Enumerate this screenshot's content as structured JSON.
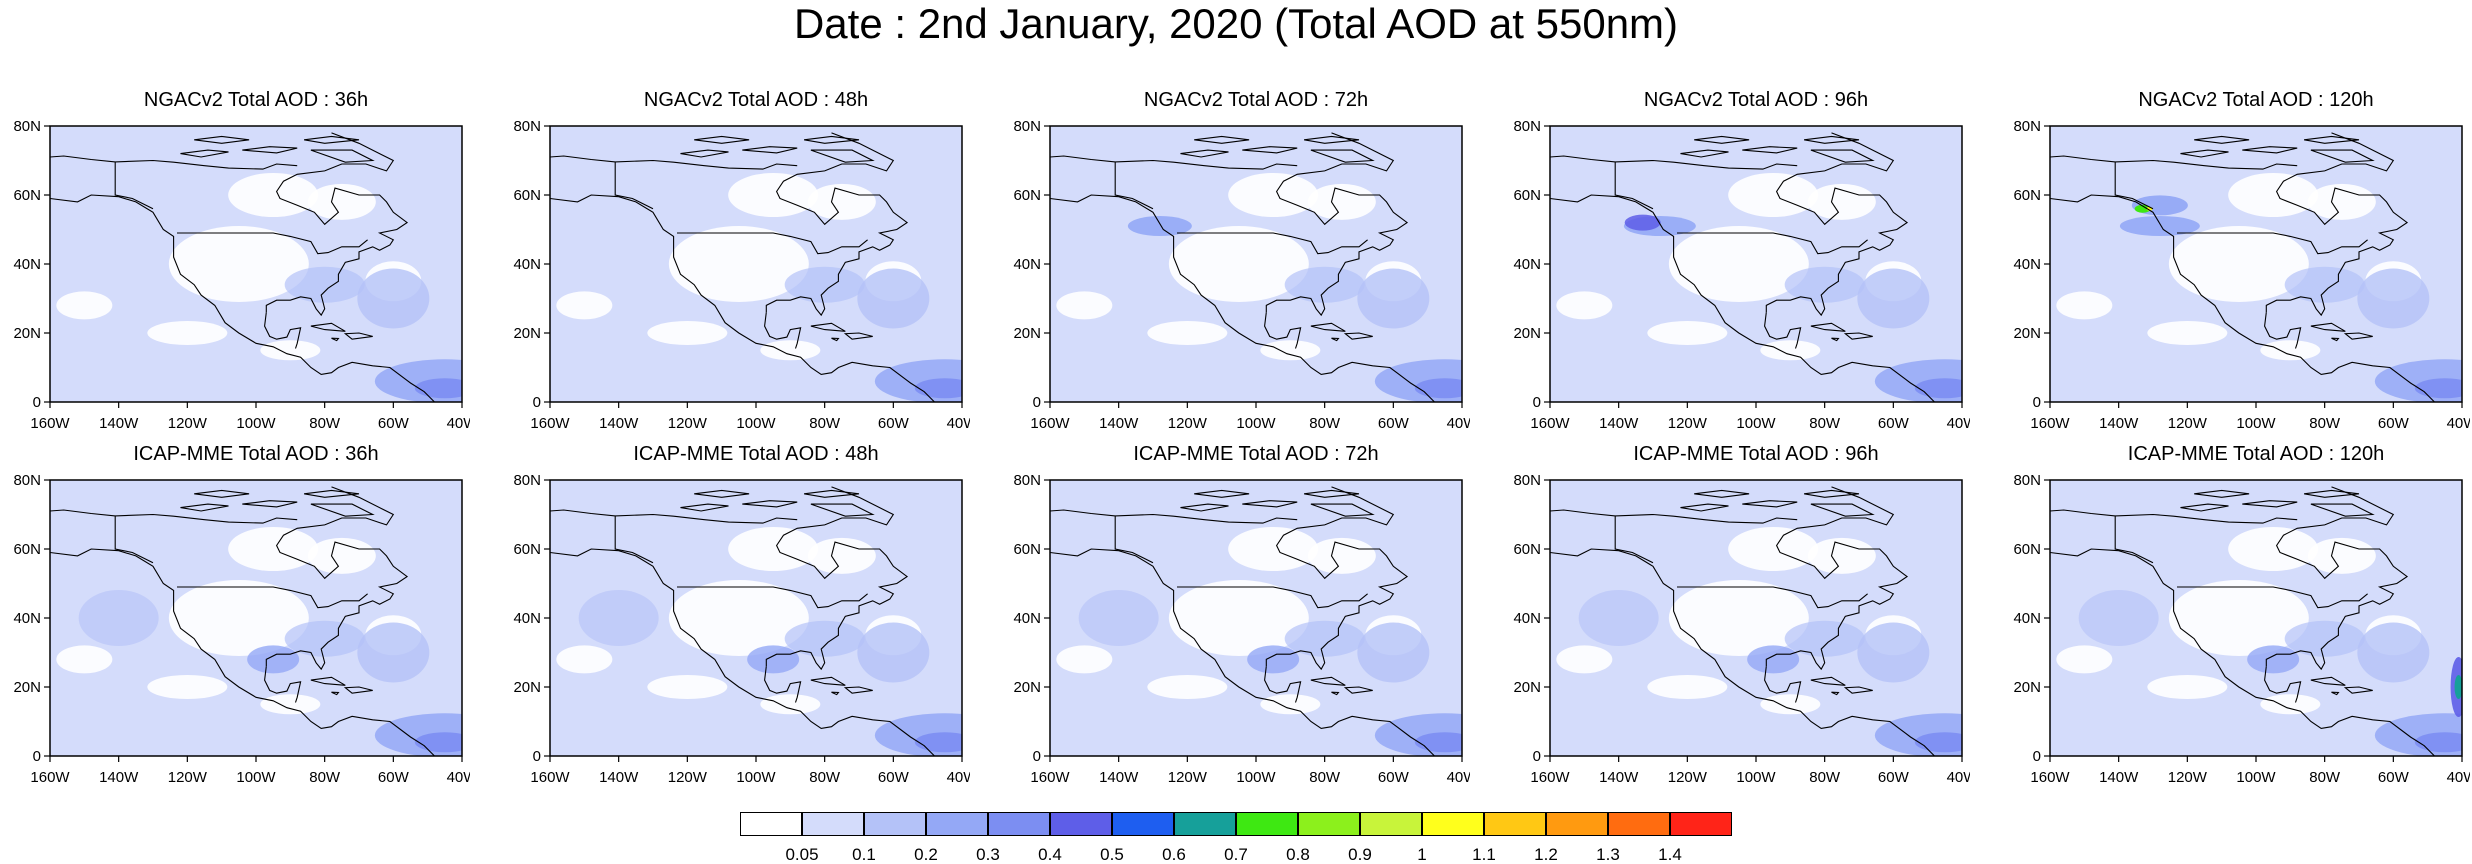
{
  "title": "Date : 2nd January, 2020 (Total AOD at 550nm)",
  "lat_ticks": [
    "80N",
    "60N",
    "40N",
    "20N",
    "0"
  ],
  "lon_ticks": [
    "160W",
    "140W",
    "120W",
    "100W",
    "80W",
    "60W",
    "40W"
  ],
  "panels": [
    {
      "model": "NGACv2",
      "title": "NGACv2 Total AOD : 36h",
      "lead": "36h"
    },
    {
      "model": "NGACv2",
      "title": "NGACv2 Total AOD : 48h",
      "lead": "48h"
    },
    {
      "model": "NGACv2",
      "title": "NGACv2 Total AOD : 72h",
      "lead": "72h"
    },
    {
      "model": "NGACv2",
      "title": "NGACv2 Total AOD : 96h",
      "lead": "96h"
    },
    {
      "model": "NGACv2",
      "title": "NGACv2 Total AOD : 120h",
      "lead": "120h"
    },
    {
      "model": "ICAP-MME",
      "title": "ICAP-MME Total AOD : 36h",
      "lead": "36h"
    },
    {
      "model": "ICAP-MME",
      "title": "ICAP-MME Total AOD : 48h",
      "lead": "48h"
    },
    {
      "model": "ICAP-MME",
      "title": "ICAP-MME Total AOD : 72h",
      "lead": "72h"
    },
    {
      "model": "ICAP-MME",
      "title": "ICAP-MME Total AOD : 96h",
      "lead": "96h"
    },
    {
      "model": "ICAP-MME",
      "title": "ICAP-MME Total AOD : 120h",
      "lead": "120h"
    }
  ],
  "colorbar": {
    "labels": [
      "0.05",
      "0.1",
      "0.2",
      "0.3",
      "0.4",
      "0.5",
      "0.6",
      "0.7",
      "0.8",
      "0.9",
      "1",
      "1.1",
      "1.2",
      "1.3",
      "1.4"
    ],
    "colors": [
      "#ffffff",
      "#d4dcfb",
      "#b4c2f8",
      "#94a8f6",
      "#7c8ef2",
      "#5e5ee8",
      "#1e5ef0",
      "#16a09a",
      "#3ee812",
      "#8cf01c",
      "#c8f43a",
      "#ffff1c",
      "#ffc814",
      "#ff9a10",
      "#ff6c10",
      "#ff2418"
    ]
  }
}
